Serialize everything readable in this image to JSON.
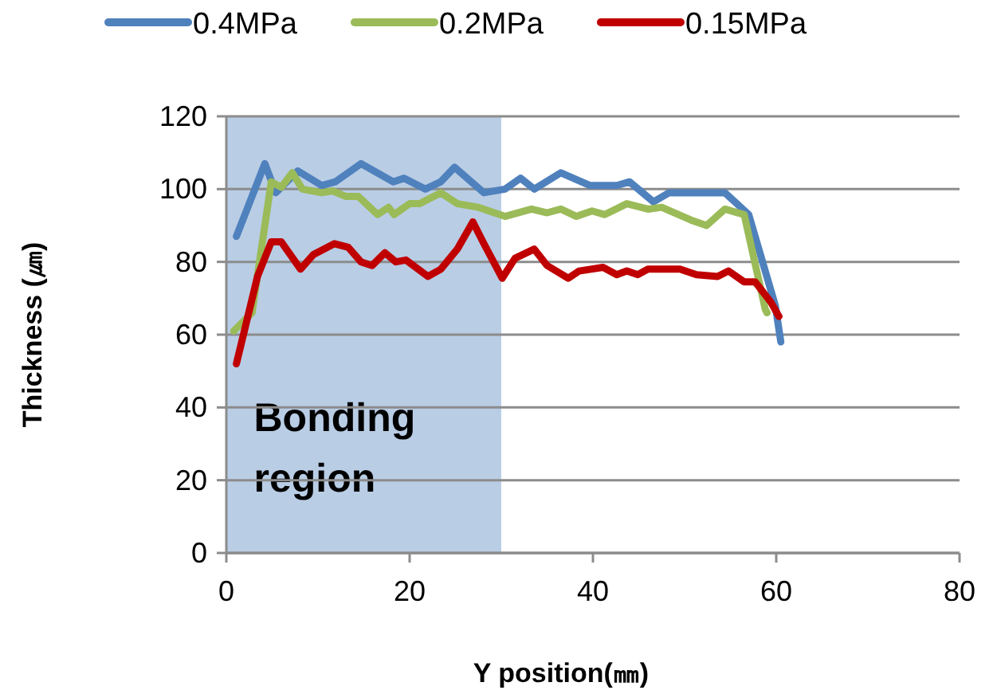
{
  "chart_data": {
    "type": "line",
    "xlabel": "Y position(㎜)",
    "ylabel": "Thickness (㎛)",
    "xlim": [
      0,
      80
    ],
    "xticks": [
      0,
      20,
      40,
      60,
      80
    ],
    "ylim": [
      0,
      120
    ],
    "yticks": [
      0,
      20,
      40,
      60,
      80,
      100,
      120
    ],
    "grid": "y",
    "legend": "top",
    "marker": "none",
    "line_style": "solid",
    "bands": [
      {
        "axis": "x",
        "from": 0,
        "to": 30,
        "label": "Bonding region",
        "color": "#b9cde5"
      }
    ],
    "series": [
      {
        "name": "0.4MPa",
        "color": "#4f81bd",
        "x": [
          1.1,
          4.2,
          5.4,
          7.8,
          10.4,
          11.9,
          14.7,
          18.2,
          19.4,
          21.7,
          23.4,
          24.9,
          28.1,
          30.4,
          32.1,
          33.6,
          36.5,
          39.7,
          42.6,
          44,
          46.6,
          48.3,
          51.8,
          54.4,
          57,
          59.9,
          60.5
        ],
        "values": [
          87,
          107,
          99,
          105,
          101,
          102,
          107,
          102,
          103,
          100,
          102,
          106,
          99,
          100,
          103,
          100,
          104.5,
          101,
          101,
          102,
          96.5,
          99,
          99,
          99,
          93,
          68,
          58
        ]
      },
      {
        "name": "0.2MPa",
        "color": "#9bbb59",
        "x": [
          0.8,
          2.8,
          4.9,
          6,
          7.2,
          8.3,
          10.4,
          11.6,
          13,
          14.4,
          16.5,
          17.7,
          18.3,
          20,
          21.1,
          23.4,
          25.2,
          27.5,
          30.4,
          33.3,
          35,
          36.5,
          38.2,
          39.9,
          41.3,
          43.7,
          46,
          47.5,
          50.7,
          52.4,
          54.4,
          56.5,
          58.8,
          59
        ],
        "values": [
          61,
          66,
          102,
          100.5,
          104.5,
          100,
          99,
          99.5,
          98,
          98,
          93,
          95,
          93,
          96,
          96,
          99,
          96,
          95,
          92.5,
          94.5,
          93.5,
          94.5,
          92.5,
          94,
          93,
          96,
          94.5,
          95,
          91.5,
          90,
          94.5,
          93,
          67,
          66
        ]
      },
      {
        "name": "0.15MPa",
        "color": "#c00000",
        "x": [
          1.1,
          3.4,
          4.9,
          6,
          8.1,
          9.5,
          11.8,
          13.3,
          14.7,
          15.9,
          17.3,
          18.5,
          19.6,
          22,
          23.4,
          25.2,
          26.9,
          28.1,
          30.1,
          31.5,
          33.6,
          35,
          37.3,
          38.5,
          41.1,
          42.6,
          43.7,
          44.9,
          46,
          49.5,
          51.3,
          53.6,
          54.8,
          56.5,
          57.7,
          59.4,
          60.3
        ],
        "values": [
          52,
          76,
          85.5,
          85.5,
          78,
          82,
          85,
          84,
          80,
          79,
          82.5,
          80,
          80.5,
          76,
          78,
          83.5,
          91,
          85,
          75.5,
          81,
          83.5,
          79,
          75.5,
          77.5,
          78.5,
          76.5,
          77.5,
          76.5,
          78,
          78,
          76.5,
          76,
          77.5,
          74.5,
          74.5,
          69,
          65
        ]
      }
    ]
  }
}
